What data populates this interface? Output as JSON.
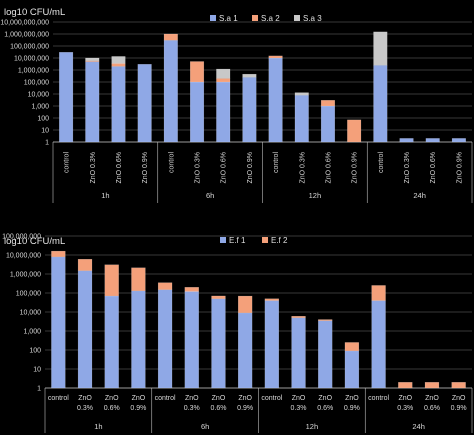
{
  "chart_data": [
    {
      "type": "bar",
      "stacked": true,
      "title": "log10 CFU/mL",
      "yscale": "log",
      "ylim": [
        1,
        10000000000
      ],
      "yticks": [
        "1",
        "10",
        "100",
        "1,000",
        "10,000",
        "100,000",
        "1,000,000",
        "10,000,000",
        "100,000,000",
        "1,000,000,000",
        "10,000,000,000"
      ],
      "categories": [
        "control",
        "ZnO 0.3%",
        "ZnO 0.6%",
        "ZnO 0.9%",
        "control",
        "ZnO 0.3%",
        "ZnO 0.6%",
        "ZnO 0.9%",
        "control",
        "ZnO 0.3%",
        "ZnO 0.6%",
        "ZnO 0.9%",
        "control",
        "ZnO 0.3%",
        "ZnO 0.6%",
        "ZnO 0.9%"
      ],
      "groups": [
        "1h",
        "6h",
        "12h",
        "24h"
      ],
      "legend_position": "top-right",
      "grid": true,
      "series": [
        {
          "name": "S.a 1",
          "color": "#8fa8e6",
          "values": [
            30000000,
            5000000,
            2000000,
            3000000,
            300000000,
            100000,
            100000,
            250000,
            10000000,
            8000,
            1000,
            0,
            2500000,
            2,
            2,
            2
          ]
        },
        {
          "name": "S.a 2",
          "color": "#f4a07a",
          "values": [
            0,
            1000000,
            1500000,
            0,
            700000000,
            5000000,
            100000,
            0,
            5000000,
            0,
            2000,
            70,
            0,
            0,
            0,
            0
          ]
        },
        {
          "name": "S.a 3",
          "color": "#c8c8c8",
          "values": [
            0,
            4000000,
            10000000,
            0,
            0,
            0,
            1000000,
            200000,
            0,
            5000,
            0,
            0,
            1500000000,
            0,
            0,
            0
          ]
        }
      ]
    },
    {
      "type": "bar",
      "stacked": true,
      "title": "log10 CFU/mL",
      "yscale": "log",
      "ylim": [
        1,
        100000000
      ],
      "yticks": [
        "1",
        "10",
        "100",
        "1,000",
        "10,000",
        "100,000",
        "1,000,000",
        "10,000,000",
        "100,000,000"
      ],
      "categories": [
        "control",
        "ZnO 0.3%",
        "ZnO 0.6%",
        "ZnO 0.9%",
        "control",
        "ZnO 0.3%",
        "ZnO 0.6%",
        "ZnO 0.9%",
        "control",
        "ZnO 0.3%",
        "ZnO 0.6%",
        "ZnO 0.9%",
        "control",
        "ZnO 0.3%",
        "ZnO 0.6%",
        "ZnO 0.9%"
      ],
      "groups": [
        "1h",
        "6h",
        "12h",
        "24h"
      ],
      "legend_position": "top-center",
      "grid": true,
      "series": [
        {
          "name": "E.f 1",
          "color": "#8fa8e6",
          "values": [
            8000000,
            1500000,
            70000,
            130000,
            150000,
            120000,
            50000,
            9000,
            40000,
            5000,
            3500,
            90,
            40000,
            1,
            1,
            1
          ]
        },
        {
          "name": "E.f 2",
          "color": "#f4a07a",
          "values": [
            8000000,
            4500000,
            3000000,
            2000000,
            200000,
            80000,
            20000,
            60000,
            10000,
            1000,
            500,
            160,
            210000,
            1,
            1,
            1
          ]
        }
      ]
    }
  ]
}
